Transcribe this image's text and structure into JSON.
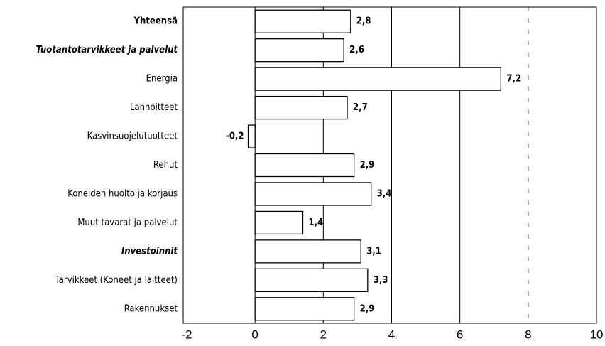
{
  "chart_data": {
    "type": "hbar",
    "categories": [
      "Yhteensä",
      "Tuotantotarvikkeet ja palvelut",
      "Energia",
      "Lannoitteet",
      "Kasvinsuojelutuotteet",
      "Rehut",
      "Koneiden huolto ja korjaus",
      "Muut tavarat ja palvelut",
      "Investoinnit",
      "Tarvikkeet (Koneet ja laitteet)",
      "Rakennukset"
    ],
    "values": [
      2.8,
      2.6,
      7.2,
      2.7,
      -0.2,
      2.9,
      3.4,
      1.4,
      3.1,
      3.3,
      2.9
    ],
    "value_labels": [
      "2,8",
      "2,6",
      "7,2",
      "2,7",
      "-0,2",
      "2,9",
      "3,4",
      "1,4",
      "3,1",
      "3,3",
      "2,9"
    ],
    "color": "#ffffff",
    "xlim": [
      -2,
      10
    ],
    "xticks": [
      -2,
      0,
      2,
      4,
      6,
      8,
      10
    ],
    "grid": true
  }
}
